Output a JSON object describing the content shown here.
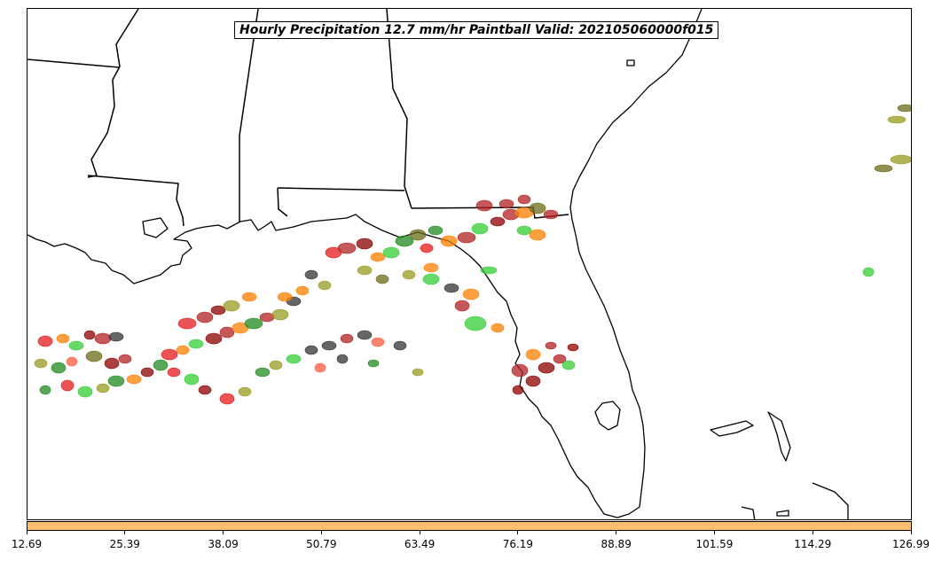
{
  "title": "Hourly Precipitation 12.7 mm/hr Paintball Valid: 202105060000f015",
  "colorbar": {
    "fill_color": "#fdbf6f",
    "tick_labels": [
      "12.69",
      "25.39",
      "38.09",
      "50.79",
      "63.49",
      "76.19",
      "88.89",
      "101.59",
      "114.29",
      "126.99"
    ]
  },
  "colors": {
    "coastline": "#000000",
    "member_colors": [
      "#e41a1c",
      "#ff7f00",
      "#b22222",
      "#8b0000",
      "#228b22",
      "#33cc33",
      "#9a9a20",
      "#6b6b1a",
      "#333333",
      "#ff5a3c"
    ]
  }
}
